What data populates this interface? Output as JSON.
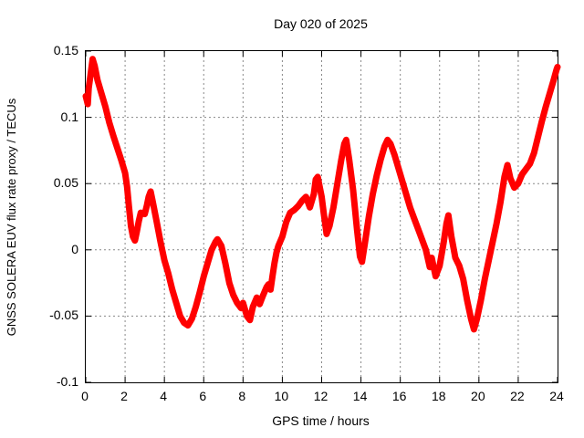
{
  "figure": {
    "background": "#ffffff"
  },
  "colors": {
    "trace": "#ff0000",
    "axis": "#000000",
    "grid": "#888888",
    "text": "#000000"
  },
  "chart_data": {
    "type": "line",
    "title": "Day 020 of 2025",
    "xlabel": "GPS time / hours",
    "ylabel": "GNSS SOLERA EUV flux rate proxy / TECUs",
    "xlim": [
      0,
      24
    ],
    "ylim": [
      -0.1,
      0.15
    ],
    "xticks": [
      0,
      2,
      4,
      6,
      8,
      10,
      12,
      14,
      16,
      18,
      20,
      22,
      24
    ],
    "xtick_labels": [
      "0",
      "2",
      "4",
      "6",
      "8",
      "10",
      "12",
      "14",
      "16",
      "18",
      "20",
      "22",
      "24"
    ],
    "yticks": [
      0.15,
      0.1,
      0.05,
      0,
      -0.05,
      -0.1
    ],
    "ytick_labels": [
      "0.15",
      "0.1",
      "0.05",
      "0",
      "-0.05",
      "-0.1"
    ],
    "grid": true,
    "legend_position": "none",
    "line_color": "#ff0000",
    "line_thickness_px": 7,
    "series": [
      {
        "name": "EUV flux rate proxy",
        "color": "#ff0000",
        "x": [
          0,
          0.1,
          0.15,
          0.25,
          0.35,
          0.45,
          0.6,
          0.8,
          1.0,
          1.2,
          1.4,
          1.6,
          1.8,
          2.0,
          2.1,
          2.2,
          2.3,
          2.4,
          2.5,
          2.6,
          2.7,
          2.8,
          3.0,
          3.1,
          3.2,
          3.3,
          3.4,
          3.6,
          3.8,
          4.0,
          4.2,
          4.4,
          4.6,
          4.8,
          5.0,
          5.2,
          5.4,
          5.6,
          5.8,
          6.0,
          6.2,
          6.4,
          6.6,
          6.7,
          6.9,
          7.1,
          7.3,
          7.5,
          7.7,
          7.9,
          8.0,
          8.2,
          8.35,
          8.5,
          8.7,
          8.85,
          9.0,
          9.2,
          9.3,
          9.4,
          9.5,
          9.6,
          9.7,
          9.8,
          10.0,
          10.2,
          10.4,
          10.6,
          10.8,
          11.0,
          11.2,
          11.4,
          11.6,
          11.7,
          11.8,
          12.0,
          12.1,
          12.25,
          12.4,
          12.6,
          12.8,
          13.0,
          13.15,
          13.25,
          13.4,
          13.6,
          13.8,
          13.95,
          14.05,
          14.2,
          14.4,
          14.6,
          14.8,
          15.0,
          15.2,
          15.35,
          15.5,
          15.7,
          15.9,
          16.1,
          16.3,
          16.5,
          16.7,
          16.9,
          17.1,
          17.3,
          17.5,
          17.6,
          17.8,
          18.0,
          18.2,
          18.35,
          18.45,
          18.6,
          18.8,
          19.0,
          19.2,
          19.4,
          19.6,
          19.75,
          19.9,
          20.1,
          20.3,
          20.5,
          20.7,
          20.9,
          21.1,
          21.3,
          21.45,
          21.6,
          21.8,
          22.0,
          22.2,
          22.4,
          22.6,
          22.8,
          23.0,
          23.2,
          23.4,
          23.6,
          23.8,
          23.95,
          24.0
        ],
        "y": [
          0.116,
          0.11,
          0.122,
          0.133,
          0.144,
          0.139,
          0.128,
          0.118,
          0.108,
          0.096,
          0.086,
          0.077,
          0.068,
          0.058,
          0.048,
          0.032,
          0.018,
          0.01,
          0.007,
          0.014,
          0.022,
          0.028,
          0.027,
          0.033,
          0.04,
          0.044,
          0.037,
          0.022,
          0.006,
          -0.008,
          -0.018,
          -0.03,
          -0.04,
          -0.05,
          -0.055,
          -0.057,
          -0.052,
          -0.043,
          -0.032,
          -0.02,
          -0.01,
          0.0,
          0.006,
          0.008,
          0.003,
          -0.01,
          -0.025,
          -0.034,
          -0.04,
          -0.044,
          -0.04,
          -0.05,
          -0.053,
          -0.043,
          -0.036,
          -0.041,
          -0.035,
          -0.028,
          -0.026,
          -0.03,
          -0.02,
          -0.01,
          -0.002,
          0.003,
          0.01,
          0.021,
          0.028,
          0.03,
          0.033,
          0.037,
          0.04,
          0.032,
          0.042,
          0.053,
          0.055,
          0.04,
          0.028,
          0.012,
          0.018,
          0.032,
          0.05,
          0.068,
          0.08,
          0.083,
          0.068,
          0.045,
          0.015,
          -0.005,
          -0.009,
          0.005,
          0.025,
          0.042,
          0.056,
          0.068,
          0.078,
          0.083,
          0.08,
          0.072,
          0.062,
          0.052,
          0.042,
          0.032,
          0.024,
          0.016,
          0.008,
          0.0,
          -0.013,
          -0.006,
          -0.02,
          -0.012,
          0.005,
          0.02,
          0.026,
          0.01,
          -0.006,
          -0.012,
          -0.022,
          -0.038,
          -0.052,
          -0.06,
          -0.052,
          -0.038,
          -0.022,
          -0.008,
          0.006,
          0.02,
          0.036,
          0.055,
          0.064,
          0.054,
          0.047,
          0.05,
          0.057,
          0.061,
          0.065,
          0.073,
          0.085,
          0.097,
          0.108,
          0.118,
          0.128,
          0.136,
          0.138
        ]
      }
    ]
  }
}
